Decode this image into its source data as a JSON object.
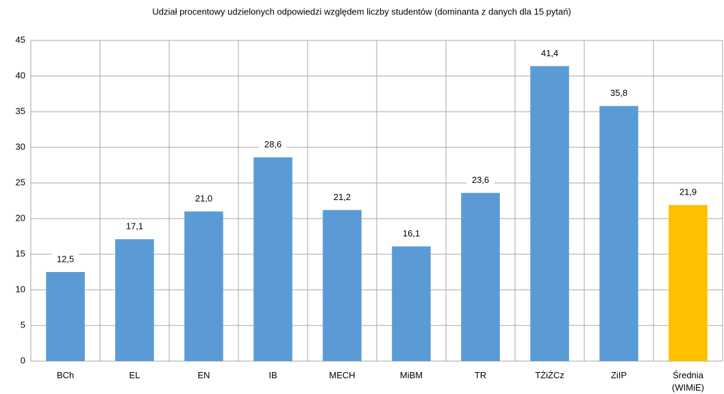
{
  "chart_data": {
    "type": "bar",
    "title": "Udział procentowy udzielonych odpowiedzi względem liczby studentów (dominanta z danych dla 15 pytań)",
    "categories": [
      "BCh",
      "EL",
      "EN",
      "IB",
      "MECH",
      "MiBM",
      "TR",
      "TŻiŻCz",
      "ZiIP",
      "Średnia (WIMiE)"
    ],
    "values": [
      12.5,
      17.1,
      21.0,
      28.6,
      21.2,
      16.1,
      23.6,
      41.4,
      35.8,
      21.9
    ],
    "value_labels": [
      "12,5",
      "17,1",
      "21,0",
      "28,6",
      "21,2",
      "16,1",
      "23,6",
      "41,4",
      "35,8",
      "21,9"
    ],
    "colors": [
      "#5b9bd5",
      "#5b9bd5",
      "#5b9bd5",
      "#5b9bd5",
      "#5b9bd5",
      "#5b9bd5",
      "#5b9bd5",
      "#5b9bd5",
      "#5b9bd5",
      "#ffc000"
    ],
    "ylim": [
      0,
      45
    ],
    "yticks": [
      0,
      5,
      10,
      15,
      20,
      25,
      30,
      35,
      40,
      45
    ],
    "grid": true
  }
}
